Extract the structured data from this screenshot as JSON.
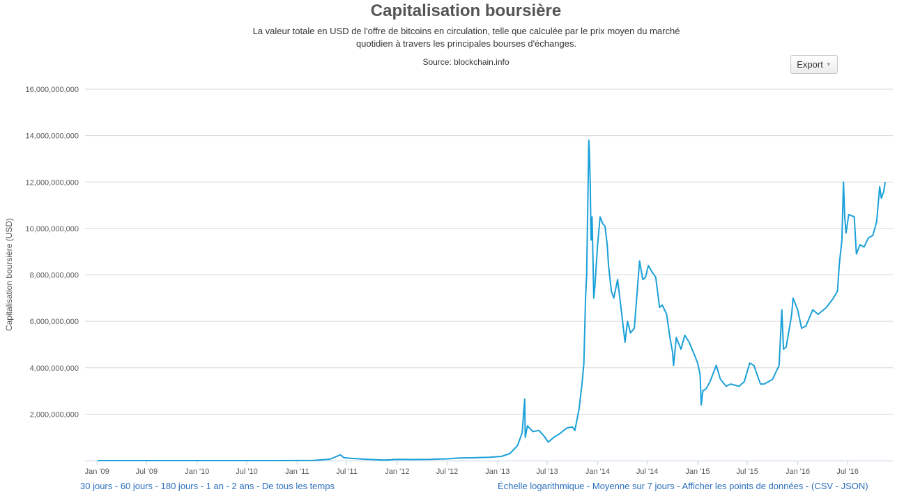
{
  "header": {
    "title": "Capitalisation boursière",
    "subtitle": "La valeur totale en USD de l'offre de bitcoins en circulation, telle que calculée par le prix moyen du marché quotidien à travers les principales bourses d'échanges.",
    "source": "Source: blockchain.info",
    "export_label": "Export"
  },
  "colors": {
    "series": "#1aa0d8",
    "grid": "#d8d8d8",
    "link": "#2a6ebb"
  },
  "chart_data": {
    "type": "line",
    "title": "Capitalisation boursière",
    "subtitle": "La valeur totale en USD de l'offre de bitcoins en circulation, telle que calculée par le prix moyen du marché quotidien à travers les principales bourses d'échanges.",
    "ylabel": "Capitalisation boursière (USD)",
    "xlabel": "",
    "grid": true,
    "ylim": [
      0,
      16000000000
    ],
    "xlim": [
      "2009-01-03",
      "2016-11-15"
    ],
    "y_ticks": [
      {
        "value": 2000000000,
        "label": "2,000,000,000"
      },
      {
        "value": 4000000000,
        "label": "4,000,000,000"
      },
      {
        "value": 6000000000,
        "label": "6,000,000,000"
      },
      {
        "value": 8000000000,
        "label": "8,000,000,000"
      },
      {
        "value": 10000000000,
        "label": "10,000,000,000"
      },
      {
        "value": 12000000000,
        "label": "12,000,000,000"
      },
      {
        "value": 14000000000,
        "label": "14,000,000,000"
      },
      {
        "value": 16000000000,
        "label": "16,000,000,000"
      }
    ],
    "x_ticks": [
      {
        "date": "2009-01-01",
        "label": "Jan '09"
      },
      {
        "date": "2009-07-01",
        "label": "Jul '09"
      },
      {
        "date": "2010-01-01",
        "label": "Jan '10"
      },
      {
        "date": "2010-07-01",
        "label": "Jul '10"
      },
      {
        "date": "2011-01-01",
        "label": "Jan '11"
      },
      {
        "date": "2011-07-01",
        "label": "Jul '11"
      },
      {
        "date": "2012-01-01",
        "label": "Jan '12"
      },
      {
        "date": "2012-07-01",
        "label": "Jul '12"
      },
      {
        "date": "2013-01-01",
        "label": "Jan '13"
      },
      {
        "date": "2013-07-01",
        "label": "Jul '13"
      },
      {
        "date": "2014-01-01",
        "label": "Jan '14"
      },
      {
        "date": "2014-07-01",
        "label": "Jul '14"
      },
      {
        "date": "2015-01-01",
        "label": "Jan '15"
      },
      {
        "date": "2015-07-01",
        "label": "Jul '15"
      },
      {
        "date": "2016-01-01",
        "label": "Jan '16"
      },
      {
        "date": "2016-07-01",
        "label": "Jul '16"
      }
    ],
    "series": [
      {
        "points": [
          [
            "2009-01-03",
            0
          ],
          [
            "2010-07-15",
            300000
          ],
          [
            "2011-01-15",
            2000000
          ],
          [
            "2011-03-01",
            5000000
          ],
          [
            "2011-05-01",
            60000000
          ],
          [
            "2011-06-08",
            250000000
          ],
          [
            "2011-06-20",
            130000000
          ],
          [
            "2011-07-15",
            100000000
          ],
          [
            "2011-09-01",
            60000000
          ],
          [
            "2011-11-15",
            25000000
          ],
          [
            "2012-01-01",
            55000000
          ],
          [
            "2012-03-01",
            45000000
          ],
          [
            "2012-05-01",
            50000000
          ],
          [
            "2012-07-01",
            75000000
          ],
          [
            "2012-08-15",
            110000000
          ],
          [
            "2012-10-01",
            120000000
          ],
          [
            "2012-12-01",
            140000000
          ],
          [
            "2013-01-15",
            180000000
          ],
          [
            "2013-02-15",
            300000000
          ],
          [
            "2013-03-15",
            650000000
          ],
          [
            "2013-04-01",
            1200000000
          ],
          [
            "2013-04-10",
            2650000000
          ],
          [
            "2013-04-12",
            1000000000
          ],
          [
            "2013-04-20",
            1500000000
          ],
          [
            "2013-05-10",
            1250000000
          ],
          [
            "2013-06-01",
            1300000000
          ],
          [
            "2013-06-20",
            1050000000
          ],
          [
            "2013-07-05",
            800000000
          ],
          [
            "2013-07-25",
            1000000000
          ],
          [
            "2013-08-15",
            1150000000
          ],
          [
            "2013-09-10",
            1400000000
          ],
          [
            "2013-10-01",
            1450000000
          ],
          [
            "2013-10-10",
            1300000000
          ],
          [
            "2013-10-25",
            2200000000
          ],
          [
            "2013-11-05",
            3300000000
          ],
          [
            "2013-11-12",
            4200000000
          ],
          [
            "2013-11-18",
            7000000000
          ],
          [
            "2013-11-22",
            8000000000
          ],
          [
            "2013-11-26",
            11000000000
          ],
          [
            "2013-11-30",
            13800000000
          ],
          [
            "2013-12-02",
            13300000000
          ],
          [
            "2013-12-05",
            12000000000
          ],
          [
            "2013-12-08",
            9500000000
          ],
          [
            "2013-12-12",
            10500000000
          ],
          [
            "2013-12-18",
            7000000000
          ],
          [
            "2013-12-22",
            7500000000
          ],
          [
            "2014-01-01",
            9300000000
          ],
          [
            "2014-01-10",
            10500000000
          ],
          [
            "2014-01-20",
            10200000000
          ],
          [
            "2014-01-28",
            10100000000
          ],
          [
            "2014-02-05",
            9300000000
          ],
          [
            "2014-02-10",
            8400000000
          ],
          [
            "2014-02-20",
            7300000000
          ],
          [
            "2014-03-01",
            7000000000
          ],
          [
            "2014-03-15",
            7800000000
          ],
          [
            "2014-03-25",
            6800000000
          ],
          [
            "2014-04-05",
            5700000000
          ],
          [
            "2014-04-11",
            5100000000
          ],
          [
            "2014-04-20",
            6000000000
          ],
          [
            "2014-05-01",
            5500000000
          ],
          [
            "2014-05-15",
            5700000000
          ],
          [
            "2014-05-25",
            7200000000
          ],
          [
            "2014-06-03",
            8600000000
          ],
          [
            "2014-06-15",
            7800000000
          ],
          [
            "2014-06-25",
            7900000000
          ],
          [
            "2014-07-05",
            8400000000
          ],
          [
            "2014-07-20",
            8100000000
          ],
          [
            "2014-08-01",
            7900000000
          ],
          [
            "2014-08-15",
            6600000000
          ],
          [
            "2014-08-25",
            6700000000
          ],
          [
            "2014-09-10",
            6300000000
          ],
          [
            "2014-09-22",
            5300000000
          ],
          [
            "2014-10-01",
            4700000000
          ],
          [
            "2014-10-05",
            4100000000
          ],
          [
            "2014-10-15",
            5300000000
          ],
          [
            "2014-11-01",
            4800000000
          ],
          [
            "2014-11-15",
            5400000000
          ],
          [
            "2014-12-01",
            5100000000
          ],
          [
            "2014-12-15",
            4700000000
          ],
          [
            "2015-01-01",
            4200000000
          ],
          [
            "2015-01-10",
            3700000000
          ],
          [
            "2015-01-14",
            2400000000
          ],
          [
            "2015-01-20",
            3000000000
          ],
          [
            "2015-02-01",
            3100000000
          ],
          [
            "2015-02-15",
            3400000000
          ],
          [
            "2015-03-10",
            4100000000
          ],
          [
            "2015-03-25",
            3500000000
          ],
          [
            "2015-04-15",
            3200000000
          ],
          [
            "2015-05-01",
            3300000000
          ],
          [
            "2015-06-01",
            3200000000
          ],
          [
            "2015-06-20",
            3400000000
          ],
          [
            "2015-07-10",
            4200000000
          ],
          [
            "2015-07-25",
            4100000000
          ],
          [
            "2015-08-18",
            3300000000
          ],
          [
            "2015-09-01",
            3300000000
          ],
          [
            "2015-10-01",
            3500000000
          ],
          [
            "2015-10-25",
            4100000000
          ],
          [
            "2015-11-04",
            6500000000
          ],
          [
            "2015-11-10",
            4800000000
          ],
          [
            "2015-11-20",
            4900000000
          ],
          [
            "2015-12-10",
            6300000000
          ],
          [
            "2015-12-15",
            7000000000
          ],
          [
            "2016-01-01",
            6500000000
          ],
          [
            "2016-01-15",
            5700000000
          ],
          [
            "2016-01-31",
            5800000000
          ],
          [
            "2016-02-25",
            6500000000
          ],
          [
            "2016-03-15",
            6300000000
          ],
          [
            "2016-04-15",
            6600000000
          ],
          [
            "2016-05-10",
            7000000000
          ],
          [
            "2016-05-25",
            7300000000
          ],
          [
            "2016-06-01",
            8500000000
          ],
          [
            "2016-06-10",
            9500000000
          ],
          [
            "2016-06-16",
            12000000000
          ],
          [
            "2016-06-20",
            10600000000
          ],
          [
            "2016-06-25",
            9800000000
          ],
          [
            "2016-07-05",
            10600000000
          ],
          [
            "2016-07-25",
            10500000000
          ],
          [
            "2016-08-02",
            8900000000
          ],
          [
            "2016-08-15",
            9300000000
          ],
          [
            "2016-08-30",
            9200000000
          ],
          [
            "2016-09-15",
            9600000000
          ],
          [
            "2016-10-01",
            9700000000
          ],
          [
            "2016-10-15",
            10300000000
          ],
          [
            "2016-10-26",
            11800000000
          ],
          [
            "2016-11-01",
            11300000000
          ],
          [
            "2016-11-10",
            11600000000
          ],
          [
            "2016-11-15",
            12000000000
          ]
        ]
      }
    ]
  },
  "footer": {
    "left_links": [
      "30 jours",
      "60 jours",
      "180 jours",
      "1 an",
      "2 ans",
      "De tous les temps"
    ],
    "separator": " - ",
    "right_links": [
      "Échelle logarithmique",
      "Moyenne sur 7 jours",
      "Afficher les points de données"
    ],
    "format_open": "(",
    "format_close": ")",
    "format_links": [
      "CSV",
      "JSON"
    ]
  }
}
